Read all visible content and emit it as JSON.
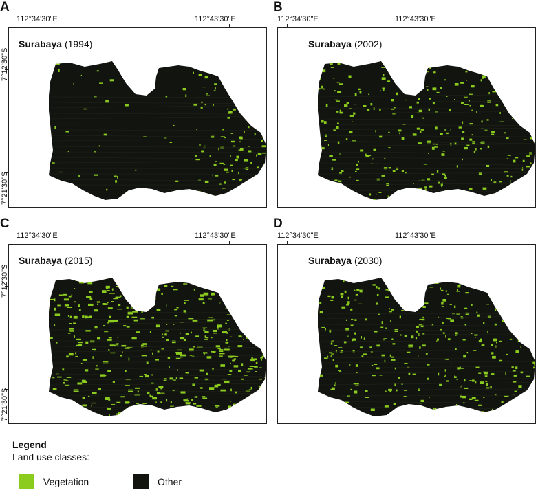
{
  "colors": {
    "vegetation": "#8ccc1e",
    "other": "#121410"
  },
  "panels": [
    {
      "letter": "A",
      "city": "Surabaya",
      "year": "(1994)",
      "lon_left": "112°34'30\"E",
      "lon_right": "112°43'30\"E",
      "lat_top": "7°12'30\"S",
      "lat_bottom": "7°21'30\"S",
      "vegetation_share": 0.12
    },
    {
      "letter": "B",
      "city": "Surabaya",
      "year": "(2002)",
      "lon_left": "112°34'30\"E",
      "lon_right": "112°43'30\"E",
      "lat_top": "",
      "lat_bottom": "",
      "vegetation_share": 0.22
    },
    {
      "letter": "C",
      "city": "Surabaya",
      "year": "(2015)",
      "lon_left": "112°34'30\"E",
      "lon_right": "112°43'30\"E",
      "lat_top": "7°12'30\"S",
      "lat_bottom": "7°21'30\"S",
      "vegetation_share": 0.35
    },
    {
      "letter": "D",
      "city": "Surabaya",
      "year": "(2030)",
      "lon_left": "112°34'30\"E",
      "lon_right": "112°43'30\"E",
      "lat_top": "",
      "lat_bottom": "",
      "vegetation_share": 0.28
    }
  ],
  "legend": {
    "title": "Legend",
    "subtitle": "Land use classes:",
    "items": [
      {
        "label": "Vegetation",
        "color": "#8ccc1e"
      },
      {
        "label": "Other",
        "color": "#121410"
      }
    ]
  }
}
